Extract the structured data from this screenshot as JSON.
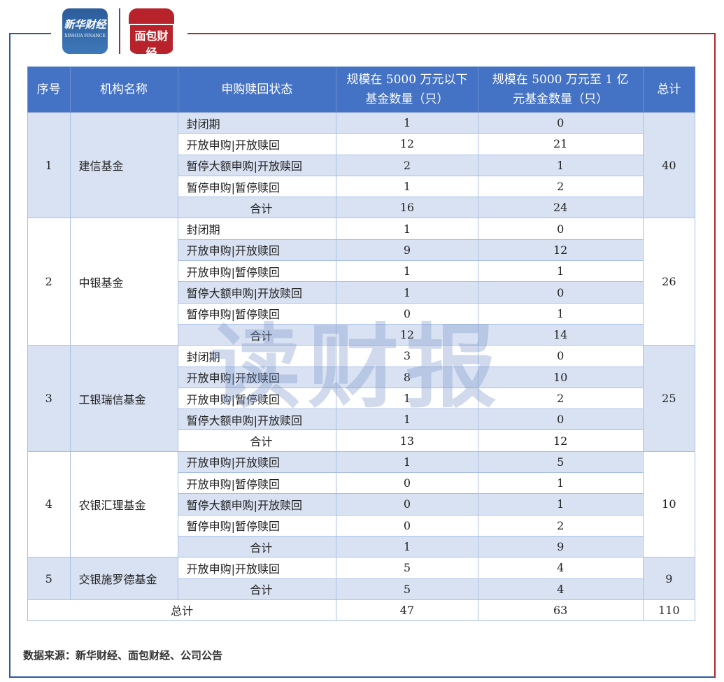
{
  "logos": {
    "xinhua_cn": "新华财经",
    "xinhua_en": "XINHUA FINANCE",
    "mianbao_cn": "面包财经"
  },
  "watermark": "读财报",
  "colors": {
    "header": "#4472c4",
    "stripe": "#d9e2f3",
    "frame_blue": "#2a5aa0",
    "frame_red": "#b8232b"
  },
  "table": {
    "headers": [
      "序号",
      "机构名称",
      "申购赎回状态",
      "规模在 5000 万元以下基金数量（只）",
      "规模在 5000 万元至 1 亿元基金数量（只）",
      "总计"
    ],
    "groups": [
      {
        "no": "1",
        "name": "建信基金",
        "total": "40",
        "rows": [
          {
            "status": "封闭期",
            "a": "1",
            "b": "0"
          },
          {
            "status": "开放申购|开放赎回",
            "a": "12",
            "b": "21"
          },
          {
            "status": "暂停大额申购|开放赎回",
            "a": "2",
            "b": "1"
          },
          {
            "status": "暂停申购|暂停赎回",
            "a": "1",
            "b": "2"
          },
          {
            "status": "合计",
            "a": "16",
            "b": "24",
            "sum": true
          }
        ]
      },
      {
        "no": "2",
        "name": "中银基金",
        "total": "26",
        "rows": [
          {
            "status": "封闭期",
            "a": "1",
            "b": "0"
          },
          {
            "status": "开放申购|开放赎回",
            "a": "9",
            "b": "12"
          },
          {
            "status": "开放申购|暂停赎回",
            "a": "1",
            "b": "1"
          },
          {
            "status": "暂停大额申购|开放赎回",
            "a": "1",
            "b": "0"
          },
          {
            "status": "暂停申购|暂停赎回",
            "a": "0",
            "b": "1"
          },
          {
            "status": "合计",
            "a": "12",
            "b": "14",
            "sum": true
          }
        ]
      },
      {
        "no": "3",
        "name": "工银瑞信基金",
        "total": "25",
        "rows": [
          {
            "status": "封闭期",
            "a": "3",
            "b": "0"
          },
          {
            "status": "开放申购|开放赎回",
            "a": "8",
            "b": "10"
          },
          {
            "status": "开放申购|暂停赎回",
            "a": "1",
            "b": "2"
          },
          {
            "status": "暂停大额申购|开放赎回",
            "a": "1",
            "b": "0"
          },
          {
            "status": "合计",
            "a": "13",
            "b": "12",
            "sum": true
          }
        ]
      },
      {
        "no": "4",
        "name": "农银汇理基金",
        "total": "10",
        "rows": [
          {
            "status": "开放申购|开放赎回",
            "a": "1",
            "b": "5"
          },
          {
            "status": "开放申购|暂停赎回",
            "a": "0",
            "b": "1"
          },
          {
            "status": "暂停大额申购|开放赎回",
            "a": "0",
            "b": "1"
          },
          {
            "status": "暂停申购|暂停赎回",
            "a": "0",
            "b": "2"
          },
          {
            "status": "合计",
            "a": "1",
            "b": "9",
            "sum": true
          }
        ]
      },
      {
        "no": "5",
        "name": "交银施罗德基金",
        "total": "9",
        "rows": [
          {
            "status": "开放申购|开放赎回",
            "a": "5",
            "b": "4"
          },
          {
            "status": "合计",
            "a": "5",
            "b": "4",
            "sum": true
          }
        ]
      }
    ],
    "grand_total": {
      "label": "总计",
      "a": "47",
      "b": "63",
      "total": "110"
    }
  },
  "source": "数据来源：新华财经、面包财经、公司公告"
}
